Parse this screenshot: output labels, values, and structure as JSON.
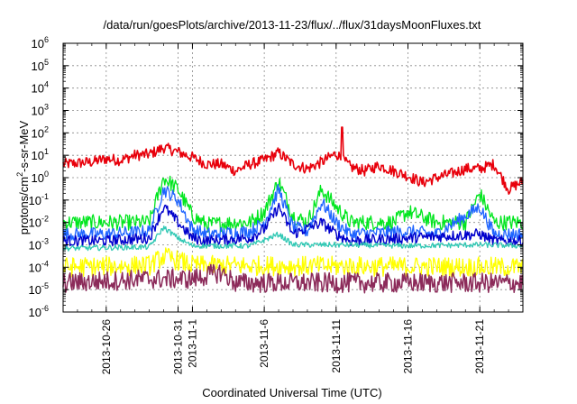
{
  "chart_data": {
    "type": "line",
    "title": "/data/run/goesPlots/archive/2013-11-23/flux/../flux/31daysMoonFluxes.txt",
    "xlabel": "Coordinated Universal Time (UTC)",
    "ylabel_parts": {
      "pre": "protons/cm",
      "sup": "2",
      "post": "-s-sr-MeV"
    },
    "yscale": "log",
    "ylim_exp": [
      -6,
      6
    ],
    "y_ticks": [
      {
        "base": "10",
        "exp": "-6"
      },
      {
        "base": "10",
        "exp": "-5"
      },
      {
        "base": "10",
        "exp": "-4"
      },
      {
        "base": "10",
        "exp": "-3"
      },
      {
        "base": "10",
        "exp": "-2"
      },
      {
        "base": "10",
        "exp": "-1"
      },
      {
        "base": "10",
        "exp": "0"
      },
      {
        "base": "10",
        "exp": "1"
      },
      {
        "base": "10",
        "exp": "2"
      },
      {
        "base": "10",
        "exp": "3"
      },
      {
        "base": "10",
        "exp": "4"
      },
      {
        "base": "10",
        "exp": "5"
      },
      {
        "base": "10",
        "exp": "6"
      }
    ],
    "xlim": [
      "2013-10-23",
      "2013-11-24"
    ],
    "x_ticks": [
      {
        "date": "2013-10-26",
        "label": "2013-10-26"
      },
      {
        "date": "2013-10-31",
        "label": "2013-10-31"
      },
      {
        "date": "2013-11-01",
        "label": "2013-11-1"
      },
      {
        "date": "2013-11-06",
        "label": "2013-11-6"
      },
      {
        "date": "2013-11-11",
        "label": "2013-11-11"
      },
      {
        "date": "2013-11-16",
        "label": "2013-11-16"
      },
      {
        "date": "2013-11-21",
        "label": "2013-11-21"
      }
    ],
    "grid": true,
    "series": [
      {
        "color": "#e8000b",
        "width": 1.6,
        "noise": 0.25,
        "points": [
          [
            "2013-10-23",
            4
          ],
          [
            "2013-10-25",
            5
          ],
          [
            "2013-10-26",
            7
          ],
          [
            "2013-10-27",
            6
          ],
          [
            "2013-10-28",
            10
          ],
          [
            "2013-10-29",
            11
          ],
          [
            "2013-10-30",
            22
          ],
          [
            "2013-10-31",
            14
          ],
          [
            "2013-11-01",
            8
          ],
          [
            "2013-11-02",
            4
          ],
          [
            "2013-11-03",
            4
          ],
          [
            "2013-11-04",
            2
          ],
          [
            "2013-11-05",
            4
          ],
          [
            "2013-11-06",
            6
          ],
          [
            "2013-11-07",
            13
          ],
          [
            "2013-11-08",
            4
          ],
          [
            "2013-11-09",
            2.5
          ],
          [
            "2013-11-10",
            5
          ],
          [
            "2013-11-11",
            12
          ],
          [
            "2013-11-12",
            3
          ],
          [
            "2013-11-13",
            2
          ],
          [
            "2013-11-14",
            3.5
          ],
          [
            "2013-11-15",
            2
          ],
          [
            "2013-11-16",
            1.2
          ],
          [
            "2013-11-17",
            0.6
          ],
          [
            "2013-11-18",
            1
          ],
          [
            "2013-11-19",
            1.5
          ],
          [
            "2013-11-20",
            2.5
          ],
          [
            "2013-11-21",
            2.5
          ],
          [
            "2013-11-22",
            4
          ],
          [
            "2013-11-23",
            0.3
          ],
          [
            "2013-11-24",
            0.7
          ]
        ],
        "spikes": [
          [
            "2013-11-11.4",
            180
          ]
        ]
      },
      {
        "color": "#00e61e",
        "width": 1.3,
        "noise": 0.35,
        "points": [
          [
            "2013-10-23",
            0.01
          ],
          [
            "2013-10-26",
            0.01
          ],
          [
            "2013-10-29",
            0.01
          ],
          [
            "2013-10-30",
            1
          ],
          [
            "2013-10-31",
            0.3
          ],
          [
            "2013-11-01",
            0.02
          ],
          [
            "2013-11-02",
            0.008
          ],
          [
            "2013-11-04",
            0.01
          ],
          [
            "2013-11-05",
            0.01
          ],
          [
            "2013-11-06",
            0.03
          ],
          [
            "2013-11-07",
            0.7
          ],
          [
            "2013-11-08",
            0.02
          ],
          [
            "2013-11-09",
            0.01
          ],
          [
            "2013-11-10",
            0.3
          ],
          [
            "2013-11-11",
            0.05
          ],
          [
            "2013-11-12",
            0.01
          ],
          [
            "2013-11-15",
            0.01
          ],
          [
            "2013-11-16",
            0.03
          ],
          [
            "2013-11-18",
            0.01
          ],
          [
            "2013-11-20",
            0.01
          ],
          [
            "2013-11-21",
            0.2
          ],
          [
            "2013-11-22",
            0.01
          ],
          [
            "2013-11-24",
            0.01
          ]
        ]
      },
      {
        "color": "#1e64ff",
        "width": 1.3,
        "noise": 0.3,
        "points": [
          [
            "2013-10-23",
            0.003
          ],
          [
            "2013-10-26",
            0.003
          ],
          [
            "2013-10-29",
            0.004
          ],
          [
            "2013-10-30",
            0.3
          ],
          [
            "2013-10-31",
            0.1
          ],
          [
            "2013-11-01",
            0.005
          ],
          [
            "2013-11-02",
            0.003
          ],
          [
            "2013-11-05",
            0.004
          ],
          [
            "2013-11-06",
            0.01
          ],
          [
            "2013-11-07",
            0.3
          ],
          [
            "2013-11-08",
            0.006
          ],
          [
            "2013-11-09",
            0.004
          ],
          [
            "2013-11-10",
            0.08
          ],
          [
            "2013-11-11",
            0.01
          ],
          [
            "2013-11-12",
            0.003
          ],
          [
            "2013-11-16",
            0.004
          ],
          [
            "2013-11-18",
            0.003
          ],
          [
            "2013-11-21",
            0.05
          ],
          [
            "2013-11-22",
            0.003
          ],
          [
            "2013-11-24",
            0.003
          ]
        ]
      },
      {
        "color": "#0000cc",
        "width": 1.4,
        "noise": 0.25,
        "points": [
          [
            "2013-10-23",
            0.0015
          ],
          [
            "2013-10-26",
            0.0015
          ],
          [
            "2013-10-29",
            0.002
          ],
          [
            "2013-10-30",
            0.05
          ],
          [
            "2013-10-31",
            0.01
          ],
          [
            "2013-11-01",
            0.002
          ],
          [
            "2013-11-02",
            0.0015
          ],
          [
            "2013-11-05",
            0.002
          ],
          [
            "2013-11-06",
            0.005
          ],
          [
            "2013-11-07",
            0.05
          ],
          [
            "2013-11-08",
            0.003
          ],
          [
            "2013-11-10",
            0.01
          ],
          [
            "2013-11-11",
            0.003
          ],
          [
            "2013-11-12",
            0.0015
          ],
          [
            "2013-11-16",
            0.002
          ],
          [
            "2013-11-21",
            0.003
          ],
          [
            "2013-11-22",
            0.0015
          ],
          [
            "2013-11-24",
            0.0015
          ]
        ]
      },
      {
        "color": "#30c8b4",
        "width": 1.3,
        "noise": 0.12,
        "points": [
          [
            "2013-10-23",
            0.0007
          ],
          [
            "2013-10-29",
            0.0008
          ],
          [
            "2013-10-30",
            0.006
          ],
          [
            "2013-10-31",
            0.002
          ],
          [
            "2013-11-01",
            0.0009
          ],
          [
            "2013-11-05",
            0.0009
          ],
          [
            "2013-11-07",
            0.003
          ],
          [
            "2013-11-08",
            0.001
          ],
          [
            "2013-11-11",
            0.001
          ],
          [
            "2013-11-16",
            0.0009
          ],
          [
            "2013-11-21",
            0.001
          ],
          [
            "2013-11-24",
            0.0009
          ]
        ]
      },
      {
        "color": "#ffff00",
        "width": 1.3,
        "noise": 0.45,
        "points": [
          [
            "2013-10-23",
            0.0001
          ],
          [
            "2013-10-29",
            0.00012
          ],
          [
            "2013-10-30",
            0.0003
          ],
          [
            "2013-10-31",
            0.0002
          ],
          [
            "2013-11-01",
            0.00012
          ],
          [
            "2013-11-24",
            0.0001
          ]
        ]
      },
      {
        "color": "#8c2b5a",
        "width": 1.5,
        "noise": 0.45,
        "points": [
          [
            "2013-10-23",
            2e-05
          ],
          [
            "2013-10-29",
            3e-05
          ],
          [
            "2013-11-01",
            3e-05
          ],
          [
            "2013-11-03",
            6e-05
          ],
          [
            "2013-11-04",
            2e-05
          ],
          [
            "2013-11-24",
            2e-05
          ]
        ]
      }
    ]
  }
}
